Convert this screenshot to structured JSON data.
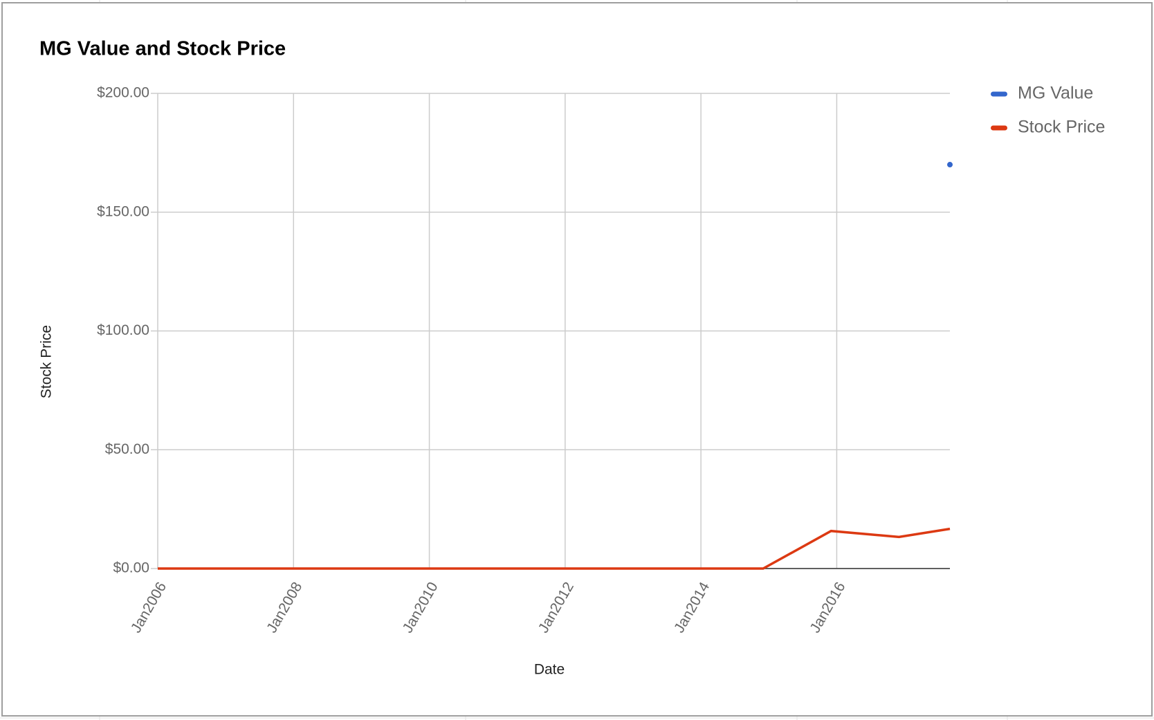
{
  "chart_data": {
    "type": "line",
    "title": "MG Value and Stock Price",
    "x_label": "Date",
    "y_label": "Stock Price",
    "x": [
      "2006-01",
      "2014-12",
      "2015-12",
      "2016-12",
      "2017-09"
    ],
    "series": [
      {
        "name": "MG Value",
        "color": "#3366cc",
        "values": [
          null,
          null,
          null,
          null,
          170
        ]
      },
      {
        "name": "Stock Price",
        "color": "#dc3912",
        "values": [
          0,
          0,
          15.8,
          13.3,
          16.7
        ]
      }
    ],
    "xlim": [
      "2006-01",
      "2017-09"
    ],
    "xticks": [
      {
        "value": "2006-01",
        "label": "Jan2006"
      },
      {
        "value": "2008-01",
        "label": "Jan2008"
      },
      {
        "value": "2010-01",
        "label": "Jan2010"
      },
      {
        "value": "2012-01",
        "label": "Jan2012"
      },
      {
        "value": "2014-01",
        "label": "Jan2014"
      },
      {
        "value": "2016-01",
        "label": "Jan2016"
      }
    ],
    "ylim": [
      0,
      200
    ],
    "yticks": [
      {
        "value": 0,
        "label": "$0.00"
      },
      {
        "value": 50,
        "label": "$50.00"
      },
      {
        "value": 100,
        "label": "$100.00"
      },
      {
        "value": 150,
        "label": "$150.00"
      },
      {
        "value": 200,
        "label": "$200.00"
      }
    ],
    "grid": true,
    "legend": "right"
  }
}
